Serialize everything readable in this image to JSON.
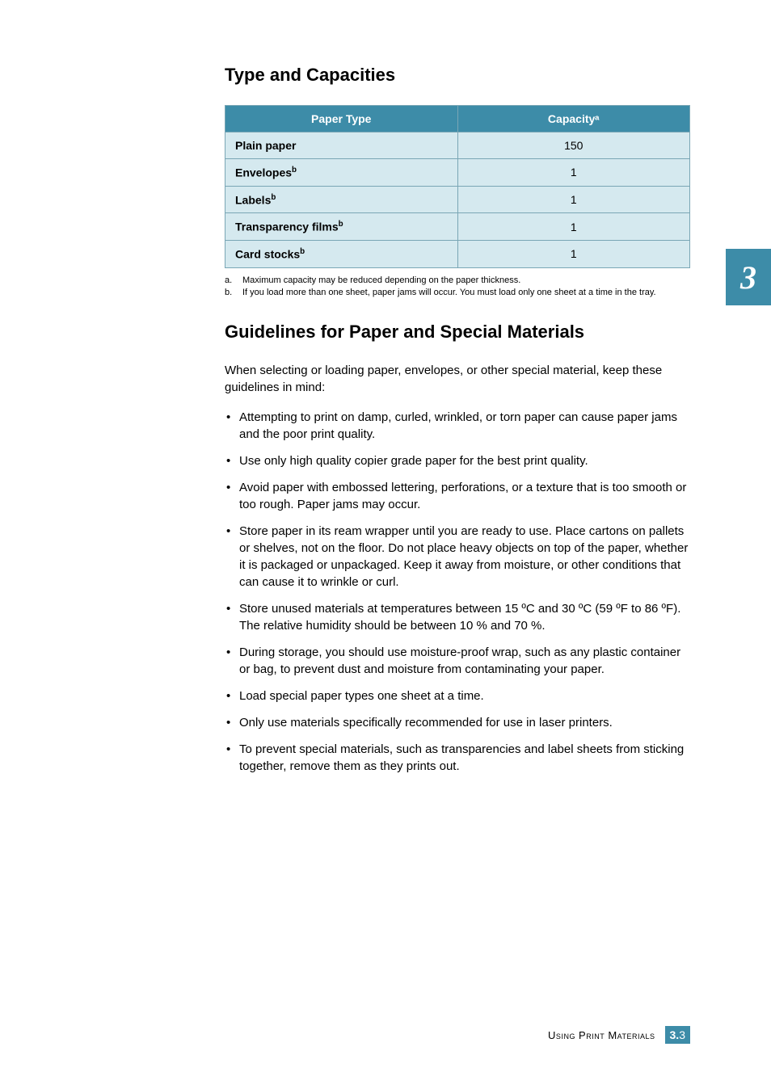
{
  "colors": {
    "accent": "#3d8ca8",
    "table_border": "#7aa6b5",
    "cell_bg": "#d5e9ef",
    "text": "#000000",
    "bg": "#ffffff"
  },
  "typography": {
    "body_font": "Verdana, Geneva, sans-serif",
    "body_size_pt": 11,
    "heading_size_pt": 17,
    "footnote_size_pt": 8
  },
  "section1": {
    "title": "Type and Capacities",
    "table": {
      "headers": [
        "Paper Type",
        "Capacityᵃ"
      ],
      "rows": [
        {
          "type": "Plain paper",
          "sup": "",
          "capacity": "150"
        },
        {
          "type": "Envelopes",
          "sup": "b",
          "capacity": "1"
        },
        {
          "type": "Labels",
          "sup": "b",
          "capacity": "1"
        },
        {
          "type": "Transparency films",
          "sup": "b",
          "capacity": "1"
        },
        {
          "type": "Card stocks",
          "sup": "b",
          "capacity": "1"
        }
      ]
    },
    "footnotes": [
      {
        "label": "a.",
        "text": "Maximum capacity may be reduced depending on the paper thickness."
      },
      {
        "label": "b.",
        "text": "If you load more than one sheet, paper jams will occur. You must load only one sheet at a time in the tray."
      }
    ]
  },
  "section2": {
    "title": "Guidelines for Paper and Special Materials",
    "intro": "When selecting or loading paper, envelopes, or other special material, keep these guidelines in mind:",
    "bullets": [
      "Attempting to print on damp, curled, wrinkled, or torn paper can cause paper jams and the poor print quality.",
      "Use only high quality copier grade paper for the best print quality.",
      "Avoid paper with embossed lettering, perforations, or a texture that is too smooth or too rough. Paper jams may occur.",
      "Store paper in its ream wrapper until you are ready to use. Place cartons on pallets or shelves, not on the floor. Do not place heavy objects on top of the paper, whether it is packaged or unpackaged. Keep it away from moisture, or other conditions that can cause it to wrinkle or curl.",
      "Store unused materials at temperatures between 15 ºC and 30 ºC (59 ºF to 86 ºF). The relative humidity should be between 10 % and 70 %.",
      "During storage, you should use moisture-proof wrap, such as any plastic container or bag, to prevent dust and moisture from contaminating your paper.",
      "Load special paper types one sheet at a time.",
      "Only use materials specifically recommended for use in laser printers.",
      "To prevent special materials, such as transparencies and label sheets from sticking together, remove them as they prints out."
    ]
  },
  "side_tab": "3",
  "footer": {
    "text": "Using Print Materials",
    "chapter": "3.",
    "page": "3"
  }
}
